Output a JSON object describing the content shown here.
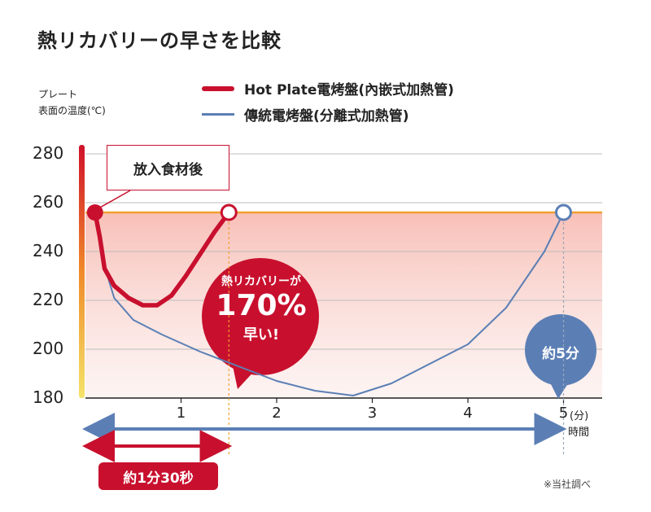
{
  "title": "熱リカバリーの早さを比較",
  "y_axis_label": "プレート\n表面の温度(℃)",
  "legend": [
    {
      "label": "Hot Plate電烤盤(內嵌式加熱管)",
      "color": "#c8102e"
    },
    {
      "label": "傳統電烤盤(分離式加熱管)",
      "color": "#5b7fb5"
    }
  ],
  "colors": {
    "red": "#c8102e",
    "blue": "#5b7fb5",
    "orange": "#f0a030",
    "band": "#f9c9c3"
  },
  "callout": "放入食材後",
  "red_bubble": {
    "line1": "熱リカバリーが",
    "pct": "170%",
    "line3": "早い!"
  },
  "blue_bubble": "約5分",
  "duration_pill": "約1分30秒",
  "x_unit": "(分)",
  "x_label": "時間",
  "note": "※当社調べ",
  "chart_data": {
    "type": "line",
    "xlabel": "時間",
    "ylabel": "プレート 表面の温度(℃)",
    "x_ticks": [
      "1",
      "2",
      "3",
      "4",
      "5"
    ],
    "y_ticks": [
      "180",
      "200",
      "220",
      "240",
      "260",
      "280"
    ],
    "xlim": [
      0,
      5.2
    ],
    "ylim": [
      180,
      280
    ],
    "threshold": 256,
    "series": [
      {
        "name": "Hot Plate電烤盤(內嵌式加熱管)",
        "x": [
          0.1,
          0.15,
          0.2,
          0.3,
          0.45,
          0.6,
          0.75,
          0.9,
          1.05,
          1.2,
          1.35,
          1.5
        ],
        "y": [
          256,
          246,
          233,
          226,
          221,
          218,
          218,
          222,
          230,
          239,
          248,
          256
        ]
      },
      {
        "name": "傳統電烤盤(分離式加熱管)",
        "x": [
          0.1,
          0.15,
          0.2,
          0.3,
          0.5,
          0.8,
          1.2,
          1.6,
          2.0,
          2.4,
          2.8,
          3.2,
          3.6,
          4.0,
          4.4,
          4.8,
          5.0
        ],
        "y": [
          256,
          248,
          234,
          221,
          212,
          206,
          199,
          193,
          187,
          183,
          181,
          186,
          194,
          202,
          217,
          240,
          256
        ]
      }
    ],
    "markers": [
      {
        "x": 0.1,
        "y": 256,
        "style": "filled",
        "series": "Hot Plate電烤盤(內嵌式加熱管)"
      },
      {
        "x": 1.5,
        "y": 256,
        "style": "open",
        "series": "Hot Plate電烤盤(內嵌式加熱管)"
      },
      {
        "x": 5.0,
        "y": 256,
        "style": "open",
        "series": "傳統電烤盤(分離式加熱管)"
      }
    ]
  }
}
